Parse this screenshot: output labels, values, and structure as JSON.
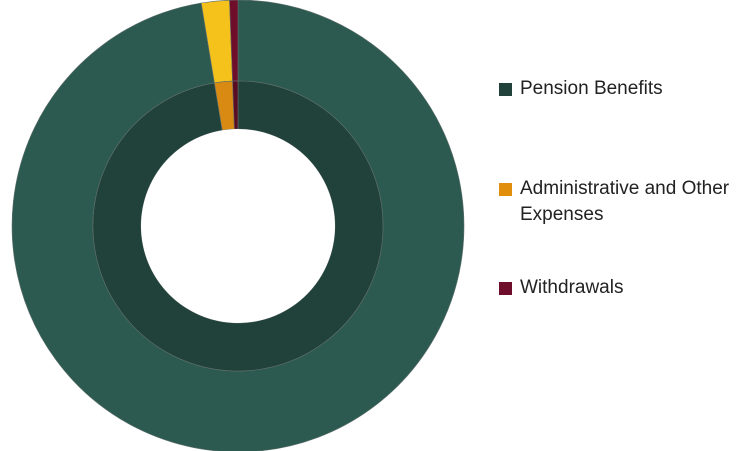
{
  "chart_data": {
    "type": "pie",
    "style": "doughnut",
    "rings": [
      {
        "ring": "outer",
        "slices": [
          {
            "name": "Pension Benefits",
            "value": 97.4,
            "color": "#2c5a51"
          },
          {
            "name": "Administrative and Other Expenses",
            "value": 2.0,
            "color": "#f5c21b"
          },
          {
            "name": "Withdrawals",
            "value": 0.6,
            "color": "#6e0e2a"
          }
        ]
      },
      {
        "ring": "inner",
        "slices": [
          {
            "name": "Pension Benefits",
            "value": 97.4,
            "color": "#21413b"
          },
          {
            "name": "Administrative and Other Expenses",
            "value": 2.0,
            "color": "#d98a12"
          },
          {
            "name": "Withdrawals",
            "value": 0.6,
            "color": "#5a0c22"
          }
        ]
      }
    ],
    "legend": {
      "placement": "right",
      "items": [
        {
          "label": "Pension Benefits",
          "color": "#21413b"
        },
        {
          "label": "Administrative and Other Expenses",
          "color": "#e08e0b"
        },
        {
          "label": "Withdrawals",
          "color": "#6e0e2a"
        }
      ]
    }
  }
}
